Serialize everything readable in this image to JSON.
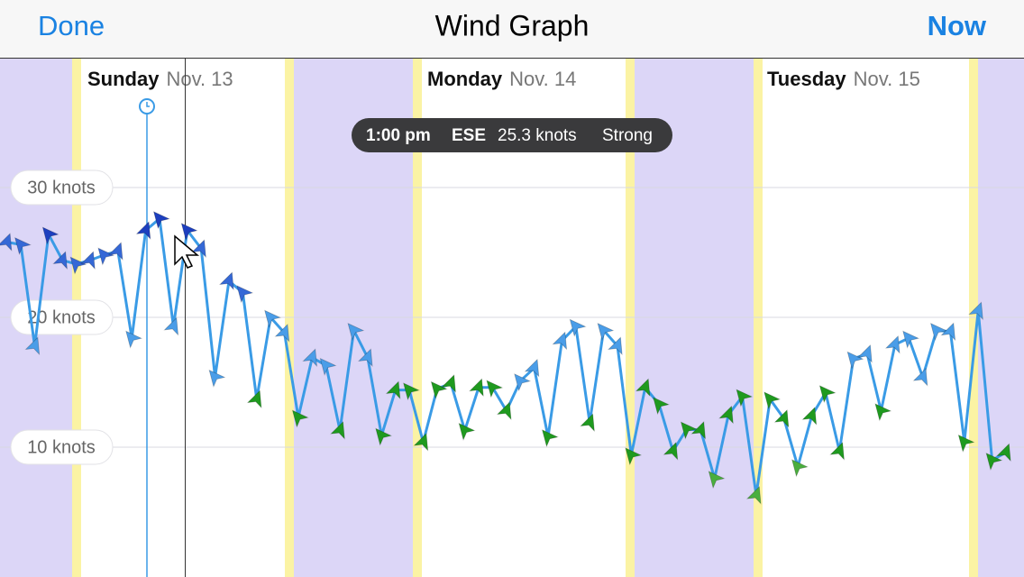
{
  "header": {
    "left_button": "Done",
    "title": "Wind Graph",
    "right_button": "Now"
  },
  "tooltip": {
    "time": "1:00 pm",
    "direction": "ESE",
    "speed": "25.3 knots",
    "strength": "Strong"
  },
  "chart_data": {
    "type": "line",
    "day_labels": [
      {
        "day": "Sunday",
        "date": "Nov. 13"
      },
      {
        "day": "Monday",
        "date": "Nov. 14"
      },
      {
        "day": "Tuesday",
        "date": "Nov. 15"
      }
    ],
    "x": [
      0,
      1,
      2,
      3,
      4,
      5,
      6,
      7,
      8,
      9,
      10,
      11,
      12,
      13,
      14,
      15,
      16,
      17,
      18,
      19,
      20,
      21,
      22,
      23,
      24,
      25,
      26,
      27,
      28,
      29,
      30,
      31,
      32,
      33,
      34,
      35,
      36,
      37,
      38,
      39,
      40,
      41,
      42,
      43,
      44,
      45,
      46,
      47,
      48,
      49,
      50,
      51,
      52,
      53,
      54,
      55,
      56,
      57,
      58,
      59,
      60,
      61,
      62,
      63,
      64,
      65,
      66,
      67,
      68,
      69,
      70,
      71,
      72
    ],
    "values": [
      25.8,
      25.6,
      17.8,
      26.4,
      24.4,
      24.1,
      24.4,
      24.8,
      25.1,
      18.4,
      26.7,
      27.6,
      19.3,
      26.7,
      25.3,
      15.4,
      22.8,
      21.9,
      13.7,
      20.0,
      18.8,
      12.3,
      16.9,
      16.3,
      11.3,
      19.0,
      16.9,
      10.9,
      14.4,
      14.4,
      10.4,
      14.5,
      14.9,
      11.3,
      14.6,
      14.6,
      12.8,
      15.1,
      16.1,
      10.8,
      18.2,
      19.3,
      11.9,
      19.0,
      17.8,
      9.4,
      14.6,
      13.3,
      9.7,
      11.4,
      11.3,
      7.6,
      12.5,
      13.9,
      6.3,
      13.7,
      12.2,
      8.5,
      12.4,
      14.2,
      9.7,
      16.8,
      17.2,
      12.8,
      17.9,
      18.4,
      15.4,
      19.0,
      18.9,
      10.4,
      20.5,
      9.0,
      9.6
    ],
    "color": "#3a9be6",
    "xlim": [
      -0.5,
      73.3
    ],
    "ylim": [
      0,
      40
    ],
    "yticks": [
      {
        "value": 10,
        "label": "10 knots"
      },
      {
        "value": 20,
        "label": "20 knots"
      },
      {
        "value": 30,
        "label": "30 knots"
      }
    ],
    "grid": true
  }
}
